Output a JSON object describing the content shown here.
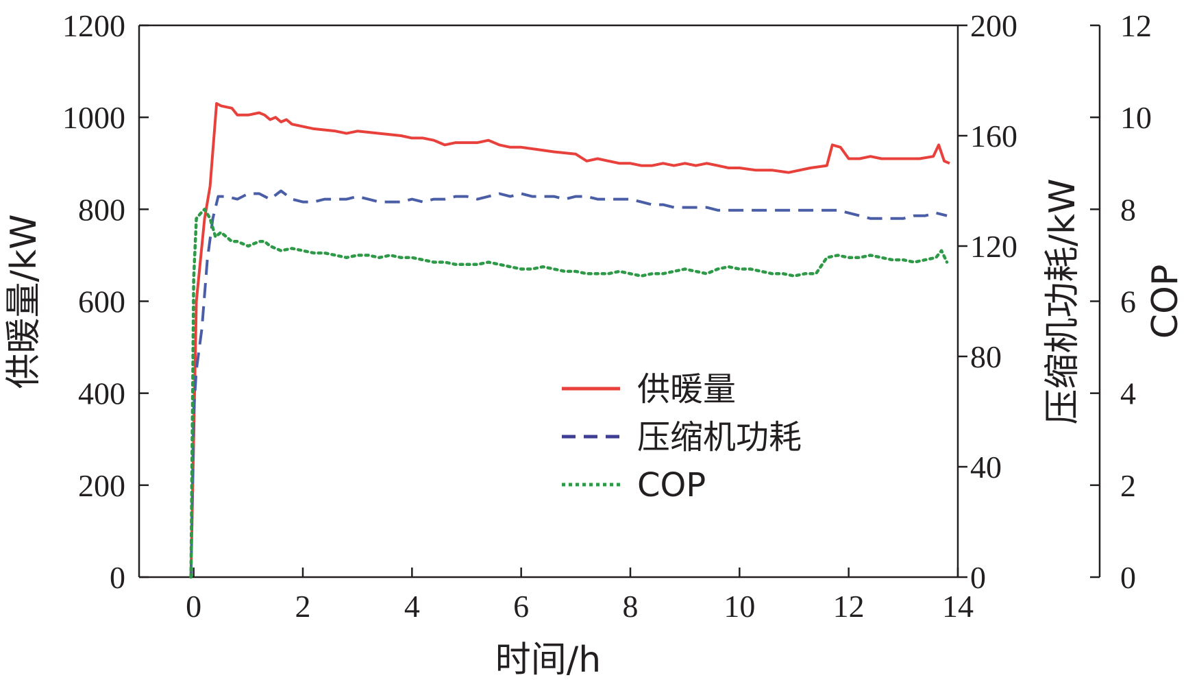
{
  "chart_data": {
    "type": "line",
    "xlabel": "时间/h",
    "ylabel_left": "供暖量/kW",
    "ylabel_right_1": "压缩机功耗/kW",
    "ylabel_right_2": "COP",
    "xlim": [
      -1,
      14
    ],
    "ylim_left": [
      0,
      1200
    ],
    "ylim_right_1": [
      0,
      200
    ],
    "ylim_right_2": [
      0,
      12
    ],
    "x_ticks": [
      "0",
      "2",
      "4",
      "6",
      "8",
      "10",
      "12",
      "14"
    ],
    "y_left_ticks": [
      "0",
      "200",
      "400",
      "600",
      "800",
      "1000",
      "1200"
    ],
    "y_right_1_ticks": [
      "0",
      "40",
      "80",
      "120",
      "160",
      "200"
    ],
    "y_right_2_ticks": [
      "0",
      "2",
      "4",
      "6",
      "8",
      "10",
      "12"
    ],
    "legend_position": "center-right",
    "series": [
      {
        "name": "供暖量",
        "axis": "left",
        "color": "#e8413c",
        "style": "solid",
        "x": [
          -0.05,
          0.05,
          0.2,
          0.3,
          0.42,
          0.5,
          0.7,
          0.8,
          1.0,
          1.2,
          1.3,
          1.4,
          1.5,
          1.6,
          1.7,
          1.8,
          2.0,
          2.2,
          2.6,
          2.8,
          3.0,
          3.4,
          3.8,
          4.0,
          4.2,
          4.4,
          4.6,
          4.8,
          5.0,
          5.2,
          5.4,
          5.6,
          5.8,
          6.0,
          6.3,
          6.6,
          7.0,
          7.2,
          7.4,
          7.6,
          7.8,
          8.0,
          8.2,
          8.4,
          8.6,
          8.8,
          9.0,
          9.2,
          9.4,
          9.6,
          9.8,
          10.0,
          10.3,
          10.6,
          10.9,
          11.1,
          11.3,
          11.6,
          11.7,
          11.85,
          12.0,
          12.2,
          12.4,
          12.6,
          12.8,
          13.0,
          13.3,
          13.55,
          13.65,
          13.75,
          13.85
        ],
        "y": [
          0,
          600,
          780,
          850,
          1030,
          1025,
          1020,
          1005,
          1005,
          1010,
          1005,
          995,
          1000,
          990,
          995,
          985,
          980,
          975,
          970,
          965,
          970,
          965,
          960,
          955,
          955,
          950,
          940,
          945,
          945,
          945,
          950,
          940,
          935,
          935,
          930,
          925,
          920,
          905,
          910,
          905,
          900,
          900,
          895,
          895,
          900,
          895,
          900,
          895,
          900,
          895,
          890,
          890,
          885,
          885,
          880,
          885,
          890,
          895,
          940,
          935,
          910,
          910,
          915,
          910,
          910,
          910,
          910,
          915,
          940,
          905,
          900
        ]
      },
      {
        "name": "压缩机功耗",
        "axis": "right_1",
        "color": "#4a5ea8",
        "style": "dashed",
        "x": [
          -0.05,
          0.0,
          0.05,
          0.15,
          0.25,
          0.35,
          0.45,
          0.6,
          0.8,
          1.0,
          1.2,
          1.4,
          1.6,
          1.8,
          2.0,
          2.2,
          2.4,
          2.6,
          2.8,
          3.0,
          3.2,
          3.4,
          3.6,
          3.8,
          4.0,
          4.2,
          4.4,
          4.6,
          4.8,
          5.0,
          5.2,
          5.4,
          5.6,
          5.8,
          6.0,
          6.2,
          6.4,
          6.6,
          6.8,
          7.0,
          7.2,
          7.4,
          7.6,
          7.8,
          8.0,
          8.2,
          8.4,
          8.6,
          8.8,
          9.0,
          9.2,
          9.4,
          9.6,
          9.8,
          10.0,
          10.4,
          10.8,
          11.2,
          11.6,
          11.8,
          12.0,
          12.2,
          12.4,
          12.6,
          12.8,
          13.0,
          13.2,
          13.4,
          13.6,
          13.8
        ],
        "y": [
          0,
          60,
          75,
          90,
          115,
          130,
          138,
          138,
          137,
          139,
          139,
          137,
          140,
          137,
          136,
          136,
          137,
          137,
          137,
          138,
          137,
          136,
          136,
          136,
          137,
          136,
          137,
          137,
          138,
          138,
          137,
          138,
          139,
          138,
          139,
          138,
          138,
          138,
          137,
          138,
          138,
          137,
          137,
          137,
          137,
          136,
          135,
          135,
          134,
          134,
          134,
          134,
          133,
          133,
          133,
          133,
          133,
          133,
          133,
          133,
          132,
          131,
          130,
          130,
          130,
          130,
          131,
          131,
          132,
          131
        ]
      },
      {
        "name": "COP",
        "axis": "right_2",
        "color": "#2e9a48",
        "style": "dotted",
        "x": [
          -0.05,
          0.0,
          0.05,
          0.12,
          0.2,
          0.3,
          0.4,
          0.5,
          0.6,
          0.7,
          0.8,
          1.0,
          1.2,
          1.3,
          1.4,
          1.6,
          1.8,
          2.0,
          2.2,
          2.4,
          2.6,
          2.8,
          3.0,
          3.2,
          3.4,
          3.6,
          3.8,
          4.0,
          4.2,
          4.4,
          4.6,
          4.8,
          5.0,
          5.2,
          5.4,
          5.6,
          5.8,
          6.0,
          6.2,
          6.4,
          6.6,
          6.8,
          7.0,
          7.2,
          7.4,
          7.6,
          7.8,
          8.0,
          8.2,
          8.4,
          8.6,
          8.8,
          9.0,
          9.2,
          9.4,
          9.6,
          9.8,
          10.0,
          10.2,
          10.4,
          10.6,
          10.8,
          11.0,
          11.2,
          11.4,
          11.6,
          11.8,
          12.0,
          12.2,
          12.4,
          12.6,
          12.8,
          13.0,
          13.2,
          13.4,
          13.6,
          13.7,
          13.8
        ],
        "y": [
          0,
          6.5,
          7.8,
          7.9,
          8.0,
          7.8,
          7.4,
          7.5,
          7.4,
          7.3,
          7.3,
          7.2,
          7.3,
          7.3,
          7.2,
          7.1,
          7.15,
          7.1,
          7.05,
          7.05,
          7.0,
          6.95,
          7.0,
          7.0,
          6.95,
          7.0,
          6.95,
          6.95,
          6.9,
          6.85,
          6.85,
          6.8,
          6.8,
          6.8,
          6.85,
          6.8,
          6.75,
          6.7,
          6.7,
          6.75,
          6.7,
          6.65,
          6.65,
          6.6,
          6.6,
          6.6,
          6.65,
          6.6,
          6.55,
          6.6,
          6.6,
          6.65,
          6.7,
          6.65,
          6.6,
          6.7,
          6.75,
          6.7,
          6.7,
          6.65,
          6.6,
          6.6,
          6.55,
          6.6,
          6.6,
          6.95,
          7.0,
          6.95,
          6.95,
          7.0,
          6.95,
          6.9,
          6.9,
          6.85,
          6.9,
          6.95,
          7.1,
          6.85
        ]
      }
    ]
  }
}
